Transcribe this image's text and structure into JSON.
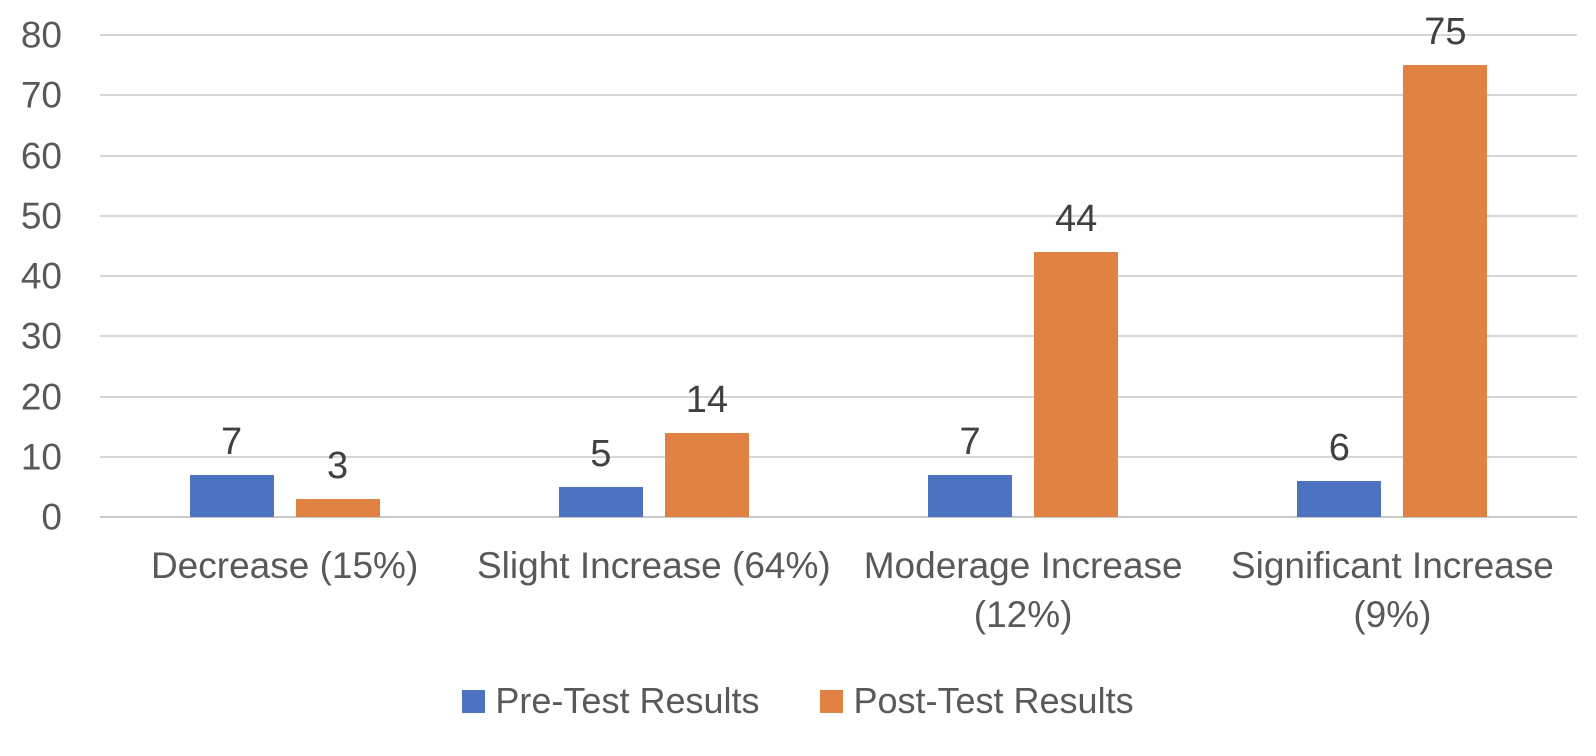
{
  "chart_data": {
    "type": "bar",
    "title": "",
    "xlabel": "",
    "ylabel": "",
    "categories": [
      "Decrease (15%)",
      "Slight Increase (64%)",
      "Moderage Increase (12%)",
      "Significant Increase (9%)"
    ],
    "series": [
      {
        "name": "Pre-Test Results",
        "color": "#4c72c0",
        "values": [
          7,
          5,
          7,
          6
        ]
      },
      {
        "name": "Post-Test Results",
        "color": "#df8244",
        "values": [
          3,
          14,
          44,
          75
        ]
      }
    ],
    "ylim": [
      0,
      80
    ],
    "yticks": [
      0,
      10,
      20,
      30,
      40,
      50,
      60,
      70,
      80
    ],
    "grid": true,
    "data_labels": true,
    "legend_position": "bottom"
  },
  "colors": {
    "background": "#ffffff",
    "gridline": "#d6d6d6",
    "axis_line": "#c9c9c9",
    "axis_text": "#595959",
    "category_text": "#595959",
    "data_label_text": "#404040",
    "legend_text": "#595959",
    "series_blue": "#4c72c0",
    "series_orange": "#df8244"
  }
}
